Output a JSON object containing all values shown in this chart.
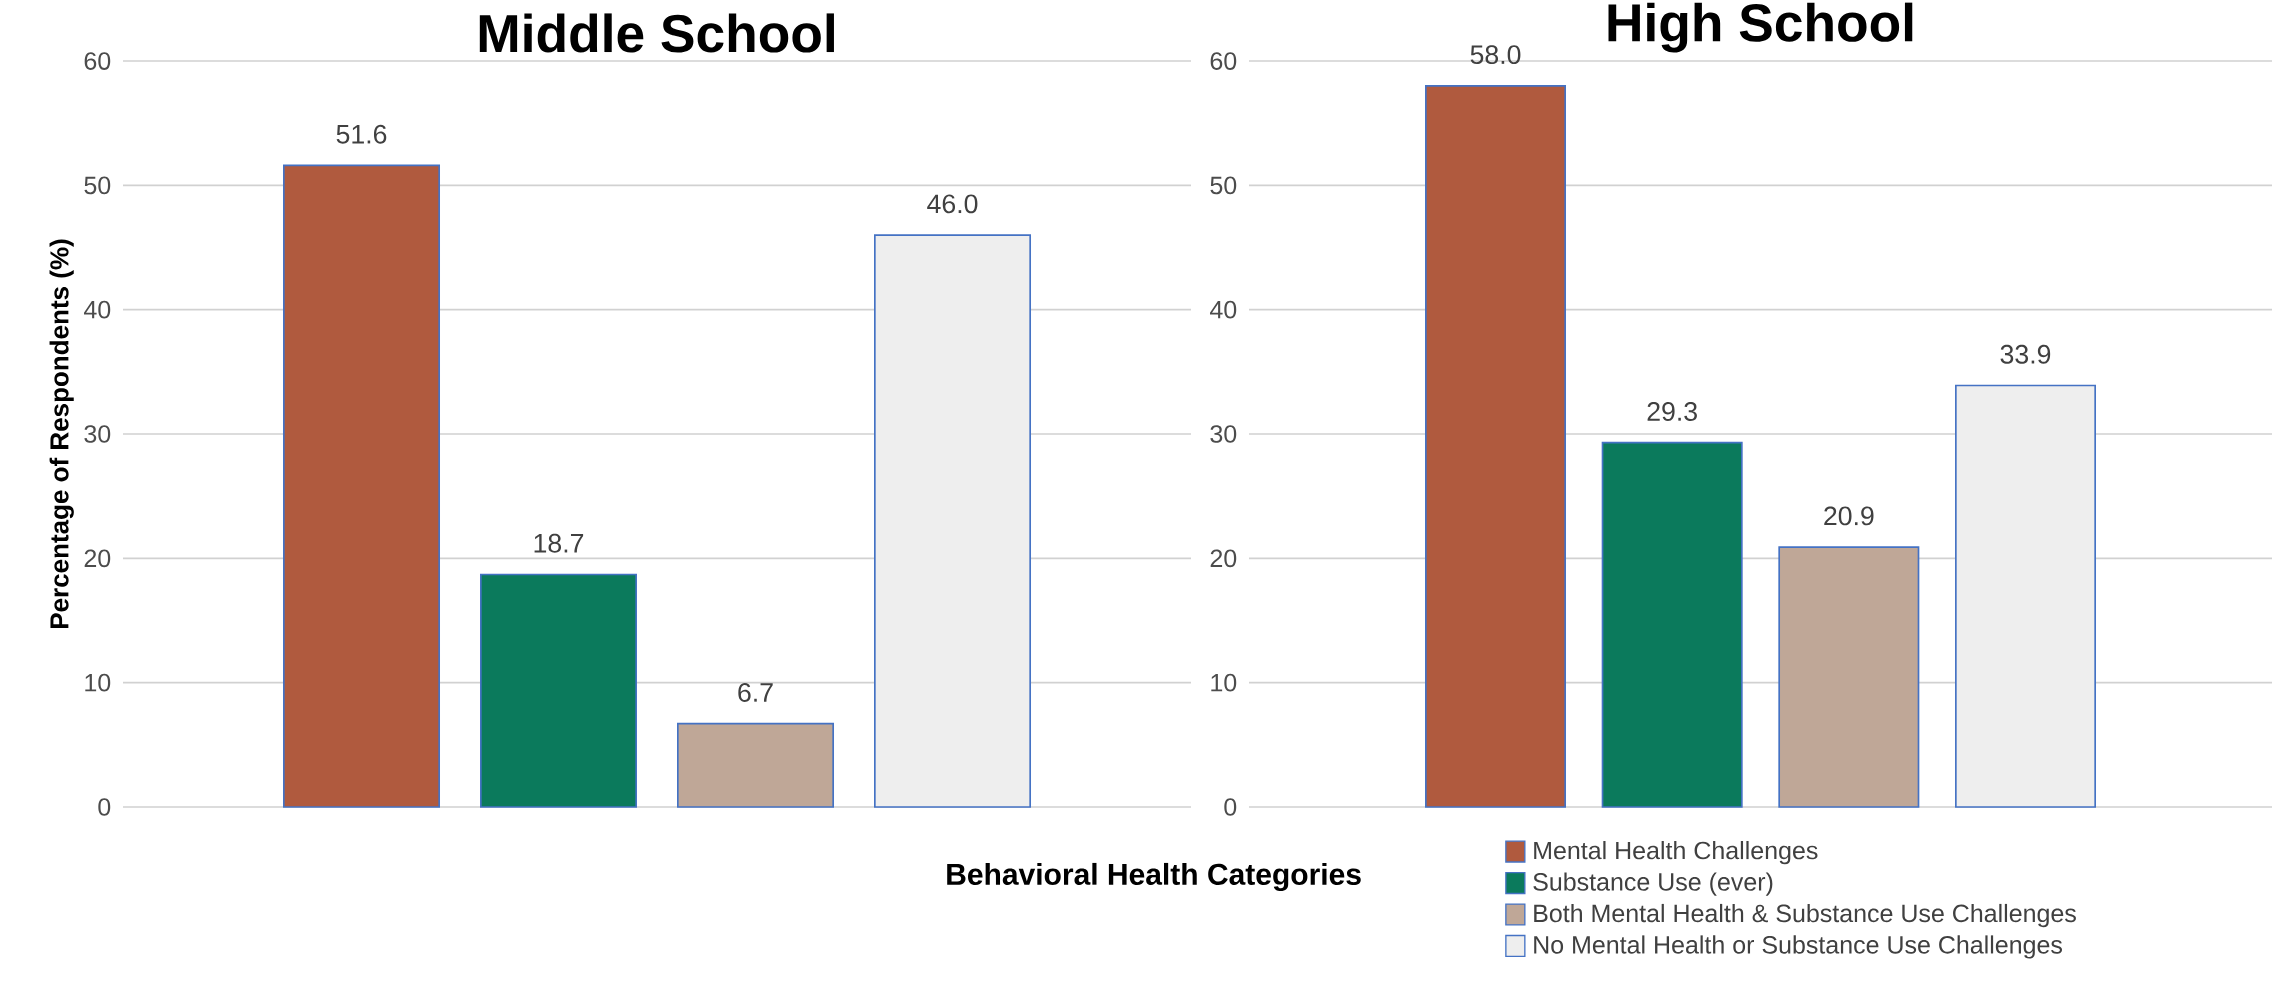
{
  "chart_data": [
    {
      "type": "bar",
      "title": "Middle School",
      "xlabel": "Behavioral Health Categories",
      "ylabel": "Percentage of Respondents (%)",
      "categories": [
        null
      ],
      "series": [
        {
          "color": "#b05a3e",
          "values": [
            51.6
          ],
          "value_labels": [
            "51.6"
          ]
        },
        {
          "color": "#0b7a5c",
          "values": [
            18.7
          ],
          "value_labels": [
            "18.7"
          ]
        },
        {
          "color": "#bfa797",
          "values": [
            6.7
          ],
          "value_labels": [
            "6.7"
          ]
        },
        {
          "color": "#eeeeee",
          "values": [
            46.0
          ],
          "value_labels": [
            "46.0"
          ]
        }
      ],
      "ylim": [
        0,
        60
      ],
      "yticks": [
        0,
        10,
        20,
        30,
        40,
        50,
        60
      ],
      "grid": "y"
    },
    {
      "type": "bar",
      "title": "High School",
      "categories": [
        null
      ],
      "series": [
        {
          "name": "Mental Health Challenges",
          "color": "#b05a3e",
          "values": [
            58.0
          ],
          "value_labels": [
            "58.0"
          ]
        },
        {
          "name": "Substance Use (ever)",
          "color": "#0b7a5c",
          "values": [
            29.3
          ],
          "value_labels": [
            "29.3"
          ]
        },
        {
          "name": "Both Mental Health & Substance Use Challenges",
          "color": "#bfa797",
          "values": [
            20.9
          ],
          "value_labels": [
            "20.9"
          ]
        },
        {
          "name": "No Mental Health or Substance Use Challenges",
          "color": "#eeeeee",
          "values": [
            33.9
          ],
          "value_labels": [
            "33.9"
          ]
        }
      ],
      "ylim": [
        0,
        60
      ],
      "yticks": [
        0,
        10,
        20,
        30,
        40,
        50,
        60
      ],
      "grid": "y",
      "legend": "bottom"
    }
  ]
}
